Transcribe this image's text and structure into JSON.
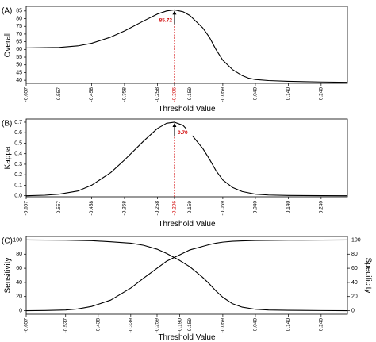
{
  "chart_data": [
    {
      "panel_label": "(A)",
      "type": "line",
      "xlabel": "Threshold Value",
      "ylabel": "Overall",
      "x_ticks": [
        "-0.657",
        "-0.557",
        "-0.458",
        "-0.358",
        "-0.258",
        "-0.206",
        "-0.159",
        "-0.059",
        "0.040",
        "0.140",
        "0.240"
      ],
      "x_tick_colors": [
        "#000000",
        "#000000",
        "#000000",
        "#000000",
        "#000000",
        "#d00000",
        "#000000",
        "#000000",
        "#000000",
        "#000000",
        "#000000"
      ],
      "xlim": [
        -0.657,
        0.32
      ],
      "ylim": [
        38,
        88
      ],
      "y_ticks": [
        "40",
        "45",
        "50",
        "55",
        "60",
        "65",
        "70",
        "75",
        "80",
        "85"
      ],
      "series": [
        {
          "x": [
            -0.657,
            -0.557,
            -0.5,
            -0.458,
            -0.4,
            -0.358,
            -0.3,
            -0.258,
            -0.23,
            -0.206,
            -0.18,
            -0.159,
            -0.12,
            -0.1,
            -0.08,
            -0.059,
            -0.03,
            0.0,
            0.02,
            0.04,
            0.08,
            0.14,
            0.24,
            0.32
          ],
          "y": [
            61,
            61.3,
            62.3,
            64,
            68,
            72,
            78.5,
            83,
            85,
            85.72,
            84.5,
            82,
            74,
            68,
            60,
            53,
            47,
            43,
            41.3,
            40.5,
            39.8,
            39.3,
            38.9,
            38.7
          ]
        }
      ],
      "annotation": {
        "text": "85.72",
        "x": -0.206,
        "y": 85.72
      },
      "marker_x": -0.206,
      "marker_color": "#d00000"
    },
    {
      "panel_label": "(B)",
      "type": "line",
      "xlabel": "Threshold Value",
      "ylabel": "Kappa",
      "x_ticks": [
        "-0.657",
        "-0.557",
        "-0.458",
        "-0.358",
        "-0.258",
        "-0.206",
        "-0.159",
        "-0.059",
        "0.040",
        "0.140",
        "0.240"
      ],
      "x_tick_colors": [
        "#000000",
        "#000000",
        "#000000",
        "#000000",
        "#000000",
        "#d00000",
        "#000000",
        "#000000",
        "#000000",
        "#000000",
        "#000000"
      ],
      "xlim": [
        -0.657,
        0.32
      ],
      "ylim": [
        -0.01,
        0.73
      ],
      "y_ticks": [
        "0.0",
        "0.1",
        "0.2",
        "0.3",
        "0.4",
        "0.5",
        "0.6",
        "0.7"
      ],
      "series": [
        {
          "x": [
            -0.657,
            -0.6,
            -0.557,
            -0.5,
            -0.458,
            -0.4,
            -0.358,
            -0.3,
            -0.258,
            -0.23,
            -0.206,
            -0.18,
            -0.159,
            -0.12,
            -0.1,
            -0.08,
            -0.059,
            -0.03,
            0.0,
            0.04,
            0.08,
            0.14,
            0.24,
            0.32
          ],
          "y": [
            0.0,
            0.005,
            0.015,
            0.045,
            0.1,
            0.22,
            0.34,
            0.52,
            0.64,
            0.69,
            0.7,
            0.67,
            0.6,
            0.45,
            0.35,
            0.24,
            0.15,
            0.08,
            0.04,
            0.015,
            0.007,
            0.003,
            0.001,
            0.0
          ]
        }
      ],
      "annotation": {
        "text": "0.70",
        "x": -0.206,
        "y": 0.7
      },
      "marker_x": -0.206,
      "marker_color": "#d00000"
    },
    {
      "panel_label": "(C)",
      "type": "line",
      "xlabel": "Threshold Value",
      "ylabel": "Sensitivity",
      "ylabel_right": "Specificity",
      "x_ticks": [
        "-0.657",
        "-0.537",
        "-0.438",
        "-0.339",
        "-0.259",
        "-0.190",
        "-0.159",
        "-0.059",
        "0.040",
        "0.140",
        "0.240"
      ],
      "xlim": [
        -0.657,
        0.32
      ],
      "ylim": [
        -5,
        105
      ],
      "y_ticks": [
        "0",
        "20",
        "40",
        "60",
        "80",
        "100"
      ],
      "y_ticks_right": [
        "0",
        "20",
        "40",
        "60",
        "80",
        "100"
      ],
      "series": [
        {
          "x": [
            -0.657,
            -0.537,
            -0.458,
            -0.4,
            -0.339,
            -0.3,
            -0.259,
            -0.23,
            -0.19,
            -0.159,
            -0.12,
            -0.1,
            -0.08,
            -0.059,
            -0.03,
            0.0,
            0.04,
            0.08,
            0.14,
            0.24,
            0.32
          ],
          "y": [
            100,
            99.7,
            99,
            97.5,
            95.5,
            92.5,
            87,
            81,
            71,
            62,
            47,
            38,
            28,
            19,
            10,
            5,
            2,
            1,
            0.5,
            0.2,
            0.0
          ]
        },
        {
          "x": [
            -0.657,
            -0.6,
            -0.537,
            -0.5,
            -0.458,
            -0.4,
            -0.339,
            -0.3,
            -0.259,
            -0.23,
            -0.19,
            -0.159,
            -0.12,
            -0.1,
            -0.08,
            -0.059,
            -0.03,
            0.0,
            0.04,
            0.14,
            0.24,
            0.32
          ],
          "y": [
            0,
            0.3,
            1,
            2.5,
            6,
            15,
            32,
            46,
            60,
            70,
            79,
            86,
            91,
            93.5,
            95.5,
            97,
            98.2,
            98.8,
            99.3,
            99.7,
            99.9,
            100
          ]
        }
      ]
    }
  ]
}
